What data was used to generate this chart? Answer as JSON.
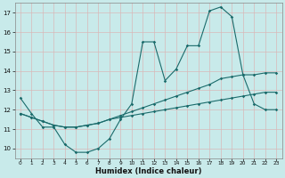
{
  "xlabel": "Humidex (Indice chaleur)",
  "bg_color": "#c8eaea",
  "grid_color": "#d8b8b8",
  "line_color": "#1a6b6b",
  "x": [
    0,
    1,
    2,
    3,
    4,
    5,
    6,
    7,
    8,
    9,
    10,
    11,
    12,
    13,
    14,
    15,
    16,
    17,
    18,
    19,
    20,
    21,
    22,
    23
  ],
  "line1": [
    12.6,
    11.8,
    11.1,
    11.1,
    10.2,
    9.8,
    9.8,
    10.0,
    10.5,
    11.5,
    12.3,
    15.5,
    15.5,
    13.5,
    14.1,
    15.3,
    15.3,
    17.1,
    17.3,
    16.8,
    13.8,
    12.3,
    12.0,
    12.0
  ],
  "line2": [
    11.8,
    11.6,
    11.4,
    11.2,
    11.1,
    11.1,
    11.2,
    11.3,
    11.5,
    11.7,
    11.9,
    12.1,
    12.3,
    12.5,
    12.7,
    12.9,
    13.1,
    13.3,
    13.6,
    13.7,
    13.8,
    13.8,
    13.9,
    13.9
  ],
  "line3": [
    11.8,
    11.6,
    11.4,
    11.2,
    11.1,
    11.1,
    11.2,
    11.3,
    11.5,
    11.6,
    11.7,
    11.8,
    11.9,
    12.0,
    12.1,
    12.2,
    12.3,
    12.4,
    12.5,
    12.6,
    12.7,
    12.8,
    12.9,
    12.9
  ],
  "xlim": [
    -0.5,
    23.5
  ],
  "ylim": [
    9.5,
    17.5
  ],
  "yticks": [
    10,
    11,
    12,
    13,
    14,
    15,
    16,
    17
  ],
  "xticks": [
    0,
    1,
    2,
    3,
    4,
    5,
    6,
    7,
    8,
    9,
    10,
    11,
    12,
    13,
    14,
    15,
    16,
    17,
    18,
    19,
    20,
    21,
    22,
    23
  ],
  "xtick_labels": [
    "0",
    "1",
    "2",
    "3",
    "4",
    "5",
    "6",
    "7",
    "8",
    "9",
    "10",
    "11",
    "12",
    "13",
    "14",
    "15",
    "16",
    "17",
    "18",
    "19",
    "20",
    "21",
    "22",
    "23"
  ]
}
